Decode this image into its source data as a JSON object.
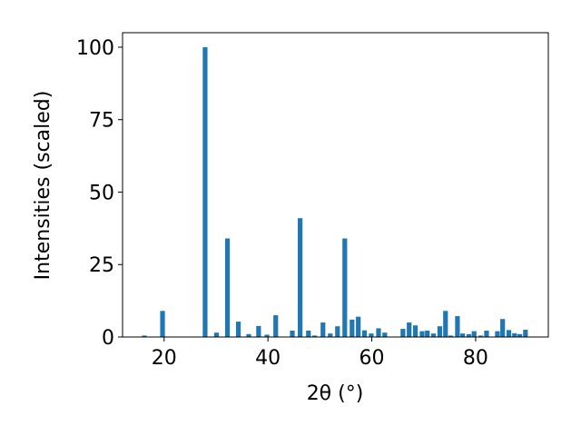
{
  "chart_data": {
    "type": "bar",
    "xlabel": "2θ (°)",
    "ylabel": "Intensities (scaled)",
    "x": [
      16.2,
      19.7,
      27.9,
      30.1,
      32.2,
      34.3,
      36.3,
      38.2,
      39.8,
      41.5,
      44.7,
      46.2,
      47.8,
      49.0,
      50.6,
      52.0,
      53.4,
      54.8,
      56.2,
      57.4,
      58.6,
      59.9,
      61.3,
      62.5,
      66.0,
      67.2,
      68.4,
      69.7,
      70.7,
      71.9,
      73.1,
      74.2,
      75.2,
      76.5,
      77.5,
      78.7,
      79.7,
      81.0,
      82.1,
      84.2,
      85.2,
      86.4,
      87.5,
      88.5,
      89.6
    ],
    "values": [
      0.5,
      9,
      100,
      1.5,
      34,
      5.3,
      1,
      3.8,
      0.8,
      7.5,
      2.2,
      41,
      2.2,
      0.5,
      5,
      1.2,
      3.7,
      34,
      6,
      7,
      2.3,
      1.2,
      3,
      1.5,
      2.8,
      5,
      4,
      2,
      2.2,
      1.2,
      3.7,
      9,
      0.5,
      7.2,
      1.2,
      1,
      2,
      0.5,
      2.2,
      2,
      6.2,
      2.4,
      1.3,
      1,
      2.5
    ],
    "color": "#1f77b4",
    "xlim": [
      12,
      94
    ],
    "xticks": [
      20,
      40,
      60,
      80
    ],
    "ylim": [
      0,
      105
    ],
    "yticks": [
      0,
      25,
      50,
      75,
      100
    ]
  }
}
